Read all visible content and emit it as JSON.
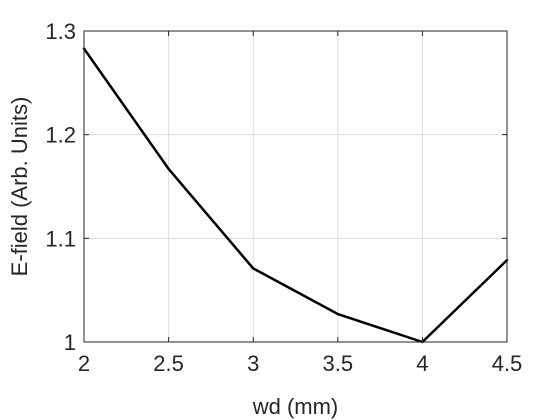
{
  "chart_data": {
    "type": "line",
    "title": "",
    "xlabel": "wd (mm)",
    "ylabel": "E-field (Arb. Units)",
    "xlim": [
      2,
      4.5
    ],
    "ylim": [
      1,
      1.3
    ],
    "xticks": [
      2,
      2.5,
      3,
      3.5,
      4,
      4.5
    ],
    "xtick_labels": [
      "2",
      "2.5",
      "3",
      "3.5",
      "4",
      "4.5"
    ],
    "yticks": [
      1,
      1.1,
      1.2,
      1.3
    ],
    "ytick_labels": [
      "1",
      "1.1",
      "1.2",
      "1.3"
    ],
    "grid": true,
    "series": [
      {
        "color": "#000000",
        "x": [
          2,
          2.5,
          3,
          3.5,
          4,
          4.5
        ],
        "y": [
          1.283,
          1.167,
          1.071,
          1.027,
          1.0,
          1.079
        ]
      }
    ]
  }
}
